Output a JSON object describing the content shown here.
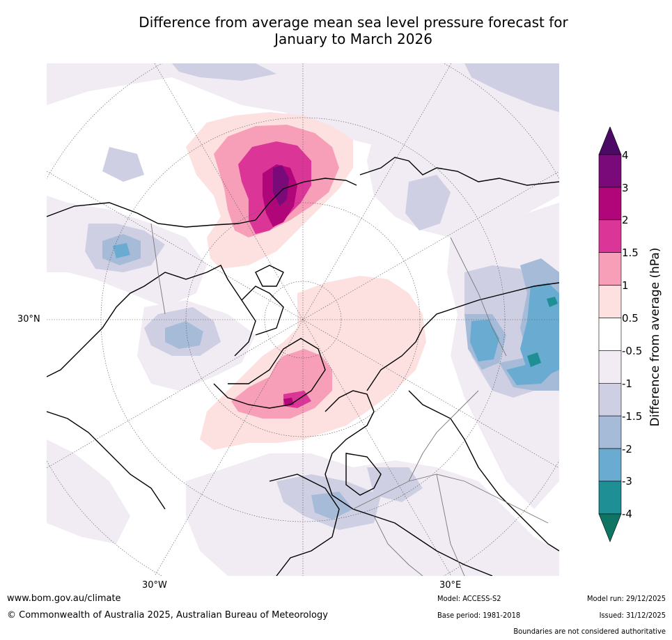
{
  "title_line1": "Difference from average mean sea level pressure forecast for",
  "title_line2": "January to March 2026",
  "map": {
    "projection": "North polar stereographic",
    "labels": {
      "lat30n": "30°N",
      "lon30w": "30°W",
      "lon30e": "30°E"
    },
    "anomaly_features": [
      {
        "region": "Bering Strait / NE Siberia",
        "sign": "positive",
        "peak_hpa": 3
      },
      {
        "region": "Greenland Sea / Norwegian Sea",
        "sign": "positive",
        "peak_hpa": 2
      },
      {
        "region": "Arctic Ocean (Svalbard to Kara)",
        "sign": "positive",
        "peak_hpa": 1
      },
      {
        "region": "Hudson Bay / Canada",
        "sign": "negative",
        "peak_hpa": -1.5
      },
      {
        "region": "Central Asia / Kazakhstan",
        "sign": "negative",
        "peak_hpa": -3
      },
      {
        "region": "Mediterranean / southern Europe",
        "sign": "negative",
        "peak_hpa": -1.5
      },
      {
        "region": "North Pacific",
        "sign": "negative",
        "peak_hpa": -2
      }
    ]
  },
  "colorbar": {
    "title": "Difference from average (hPa)",
    "tick_labels": [
      "4",
      "3",
      "2",
      "1.5",
      "1",
      "0.5",
      "-0.5",
      "-1",
      "-1.5",
      "-2",
      "-3",
      "-4"
    ],
    "colors": [
      "#4b0a64",
      "#7a0a7a",
      "#b0067a",
      "#dc3598",
      "#f79fb9",
      "#fde0e0",
      "#ffffff",
      "#f1ebf3",
      "#cfcfe3",
      "#a6bbd8",
      "#6aabd1",
      "#1f8f96",
      "#0e7565"
    ]
  },
  "footer": {
    "website": "www.bom.gov.au/climate",
    "copyright": "© Commonwealth of Australia 2025, Australian Bureau of Meteorology",
    "model": "Model: ACCESS-S2",
    "base_period": "Base period: 1981-2018",
    "model_run": "Model run: 29/12/2025",
    "issued": "Issued: 31/12/2025",
    "disclaimer": "Boundaries are not considered authoritative"
  }
}
